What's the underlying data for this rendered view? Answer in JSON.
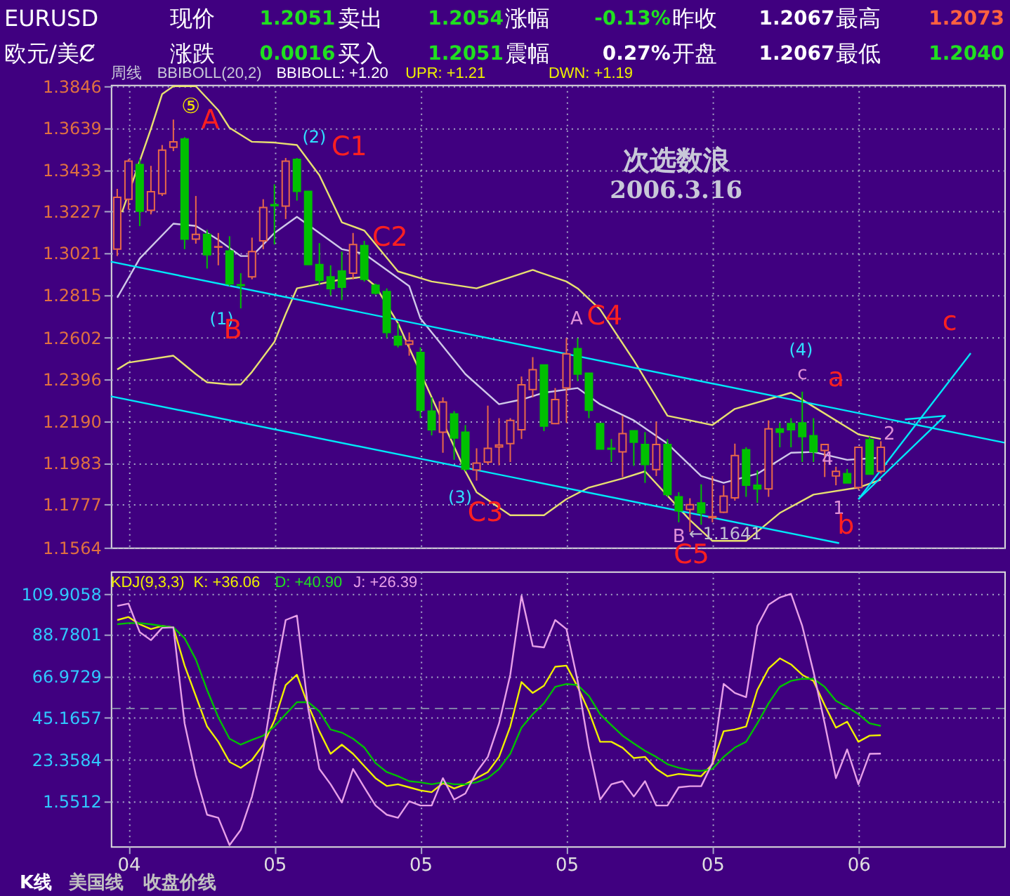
{
  "chart_data": [
    {
      "type": "candlestick",
      "x": [
        "2004-11-22",
        "2004-11-29",
        "2004-12-06",
        "2004-12-13",
        "2004-12-20",
        "2004-12-27",
        "2005-01-03",
        "2005-01-10",
        "2005-01-17",
        "2005-01-24",
        "2005-01-31",
        "2005-02-07",
        "2005-02-14",
        "2005-02-21",
        "2005-02-28",
        "2005-03-07",
        "2005-03-14",
        "2005-03-21",
        "2005-03-28",
        "2005-04-04",
        "2005-04-11",
        "2005-04-18",
        "2005-04-25",
        "2005-05-02",
        "2005-05-09",
        "2005-05-16",
        "2005-05-23",
        "2005-05-30",
        "2005-06-06",
        "2005-06-13",
        "2005-06-20",
        "2005-06-27",
        "2005-07-04",
        "2005-07-11",
        "2005-07-18",
        "2005-07-25",
        "2005-08-01",
        "2005-08-08",
        "2005-08-15",
        "2005-08-22",
        "2005-08-29",
        "2005-09-05",
        "2005-09-12",
        "2005-09-19",
        "2005-09-26",
        "2005-10-03",
        "2005-10-10",
        "2005-10-17",
        "2005-10-24",
        "2005-10-31",
        "2005-11-07",
        "2005-11-14",
        "2005-11-21",
        "2005-11-28",
        "2005-12-05",
        "2005-12-12",
        "2005-12-19",
        "2005-12-26",
        "2006-01-02",
        "2006-01-09",
        "2006-01-16",
        "2006-01-23",
        "2006-01-30",
        "2006-02-06",
        "2006-02-13",
        "2006-02-20",
        "2006-02-27",
        "2006-03-06",
        "2006-03-13"
      ],
      "ohlc": [
        [
          1.304,
          1.3338,
          1.3006,
          1.3296
        ],
        [
          1.3287,
          1.3486,
          1.3235,
          1.3475
        ],
        [
          1.3459,
          1.3486,
          1.3154,
          1.3228
        ],
        [
          1.3232,
          1.3452,
          1.3212,
          1.3324
        ],
        [
          1.3315,
          1.3555,
          1.3303,
          1.353
        ],
        [
          1.3544,
          1.3681,
          1.3525,
          1.3571
        ],
        [
          1.3585,
          1.3594,
          1.304,
          1.309
        ],
        [
          1.309,
          1.3303,
          1.3067,
          1.3113
        ],
        [
          1.3113,
          1.3136,
          1.2944,
          1.3012
        ],
        [
          1.305,
          1.312,
          1.296,
          1.3052
        ],
        [
          1.3031,
          1.3104,
          1.2857,
          1.2868
        ],
        [
          1.2864,
          1.2921,
          1.2747,
          1.286
        ],
        [
          1.2903,
          1.3097,
          1.2891,
          1.3028
        ],
        [
          1.3081,
          1.3287,
          1.304,
          1.3246
        ],
        [
          1.326,
          1.3361,
          1.3063,
          1.3255
        ],
        [
          1.3253,
          1.3491,
          1.3189,
          1.3475
        ],
        [
          1.3484,
          1.3491,
          1.328,
          1.3326
        ],
        [
          1.3326,
          1.3326,
          1.2964,
          1.2964
        ],
        [
          1.2964,
          1.307,
          1.2861,
          1.2886
        ],
        [
          1.2903,
          1.296,
          1.2811,
          1.2845
        ],
        [
          1.2932,
          1.3028,
          1.2788,
          1.2852
        ],
        [
          1.2921,
          1.312,
          1.2891,
          1.3063
        ],
        [
          1.3058,
          1.3081,
          1.288,
          1.2891
        ],
        [
          1.2861,
          1.287,
          1.2815,
          1.2822
        ],
        [
          1.283,
          1.2846,
          1.26,
          1.2628
        ],
        [
          1.2609,
          1.2674,
          1.2554,
          1.2566
        ],
        [
          1.257,
          1.2628,
          1.2513,
          1.2586
        ],
        [
          1.2529,
          1.2554,
          1.2204,
          1.2243
        ],
        [
          1.2239,
          1.2307,
          1.2119,
          1.2147
        ],
        [
          1.2135,
          1.2307,
          1.2033,
          1.2284
        ],
        [
          1.2225,
          1.2239,
          1.1998,
          1.2106
        ],
        [
          1.2135,
          1.217,
          1.1941,
          1.1952
        ],
        [
          1.1948,
          1.2055,
          1.1895,
          1.1982
        ],
        [
          1.1987,
          1.2266,
          1.1975,
          1.2055
        ],
        [
          1.2062,
          1.2204,
          1.1971,
          1.2071
        ],
        [
          1.2078,
          1.2204,
          1.1987,
          1.2193
        ],
        [
          1.2147,
          1.241,
          1.2101,
          1.2369
        ],
        [
          1.2346,
          1.2506,
          1.2307,
          1.2444
        ],
        [
          1.2467,
          1.2467,
          1.214,
          1.2165
        ],
        [
          1.2177,
          1.2353,
          1.2177,
          1.2296
        ],
        [
          1.2353,
          1.26,
          1.2181,
          1.2522
        ],
        [
          1.2548,
          1.26,
          1.2387,
          1.2422
        ],
        [
          1.2426,
          1.2426,
          1.2204,
          1.2243
        ],
        [
          1.2177,
          1.2177,
          1.2051,
          1.2051
        ],
        [
          1.2055,
          1.2101,
          1.1987,
          1.2051
        ],
        [
          1.2037,
          1.2216,
          1.1913,
          1.2128
        ],
        [
          1.2142,
          1.2142,
          1.1968,
          1.2085
        ],
        [
          1.2074,
          1.2135,
          1.1884,
          1.1975
        ],
        [
          1.195,
          1.2188,
          1.1918,
          1.2074
        ],
        [
          1.2074,
          1.2101,
          1.1815,
          1.1826
        ],
        [
          1.1815,
          1.1838,
          1.1689,
          1.1746
        ],
        [
          1.1753,
          1.1808,
          1.1641,
          1.1776
        ],
        [
          1.1785,
          1.1877,
          1.1677,
          1.1735
        ],
        [
          1.1712,
          1.1918,
          1.1689,
          1.1717
        ],
        [
          1.1739,
          1.1872,
          1.1735,
          1.1819
        ],
        [
          1.181,
          1.2078,
          1.1796,
          1.2019
        ],
        [
          1.2048,
          1.206,
          1.1815,
          1.1872
        ],
        [
          1.1872,
          1.1946,
          1.1785,
          1.1854
        ],
        [
          1.1854,
          1.2193,
          1.1815,
          1.2151
        ],
        [
          1.2151,
          1.2181,
          1.206,
          1.2135
        ],
        [
          1.2177,
          1.2204,
          1.206,
          1.2147
        ],
        [
          1.2181,
          1.2335,
          1.1987,
          1.2113
        ],
        [
          1.2117,
          1.2204,
          1.1987,
          1.2037
        ],
        [
          1.2044,
          1.2074,
          1.1913,
          1.2074
        ],
        [
          1.1918,
          1.1964,
          1.1872,
          1.1941
        ],
        [
          1.193,
          1.1953,
          1.1884,
          1.1884
        ],
        [
          1.1861,
          1.206,
          1.185,
          1.206
        ],
        [
          1.2097,
          1.2113,
          1.1927,
          1.1927
        ],
        [
          1.1941,
          1.209,
          1.193,
          1.206
        ]
      ],
      "series": [
        {
          "type": "line",
          "color": "#e8e070",
          "x": [
            "2004-11-25",
            "2004-12-13",
            "2004-12-20",
            "2004-12-27",
            "2005-01-10",
            "2005-01-24",
            "2005-01-31",
            "2005-02-14",
            "2005-02-28",
            "2005-03-14",
            "2005-03-28",
            "2005-04-11",
            "2005-04-25",
            "2005-05-16",
            "2005-06-06",
            "2005-07-04",
            "2005-08-08",
            "2005-08-29",
            "2005-09-05",
            "2005-09-19",
            "2005-10-10",
            "2005-10-31",
            "2005-11-14",
            "2005-11-28",
            "2005-12-12",
            "2006-01-16",
            "2006-01-30",
            "2006-02-27",
            "2006-03-13"
          ],
          "values": [
            1.3223,
            1.3635,
            1.3807,
            1.3846,
            1.3846,
            1.3727,
            1.364,
            1.3571,
            1.3567,
            1.3555,
            1.3406,
            1.3173,
            1.3132,
            1.293,
            1.288,
            1.2846,
            1.2937,
            1.288,
            1.2846,
            1.2742,
            1.249,
            1.2216,
            1.2193,
            1.217,
            1.225,
            1.233,
            1.2261,
            1.2124,
            1.2101
          ]
        },
        {
          "type": "line",
          "color": "#d0c8e8",
          "x": [
            "2004-11-22",
            "2004-12-06",
            "2004-12-27",
            "2005-01-10",
            "2005-01-24",
            "2005-02-07",
            "2005-02-14",
            "2005-02-28",
            "2005-03-14",
            "2005-03-28",
            "2005-04-11",
            "2005-04-25",
            "2005-05-23",
            "2005-05-30",
            "2005-06-27",
            "2005-07-18",
            "2005-08-01",
            "2005-08-15",
            "2005-09-05",
            "2005-09-19",
            "2005-10-10",
            "2005-10-31",
            "2005-11-21",
            "2005-12-05",
            "2005-12-26",
            "2006-01-16",
            "2006-01-30",
            "2006-02-20",
            "2006-03-10"
          ],
          "values": [
            1.28,
            1.2994,
            1.3166,
            1.3155,
            1.3086,
            1.3006,
            1.3006,
            1.312,
            1.32,
            1.312,
            1.304,
            1.3017,
            1.2857,
            1.2697,
            1.2422,
            1.2273,
            1.2296,
            1.233,
            1.2353,
            1.2273,
            1.2193,
            1.2078,
            1.1918,
            1.1884,
            1.1929,
            1.2033,
            1.2037,
            1.1998,
            1.2007
          ]
        },
        {
          "type": "line",
          "color": "#e8e070",
          "x": [
            "2004-11-22",
            "2004-11-29",
            "2004-12-27",
            "2005-01-10",
            "2005-01-17",
            "2005-01-31",
            "2005-02-07",
            "2005-02-14",
            "2005-02-28",
            "2005-03-07",
            "2005-03-14",
            "2005-03-28",
            "2005-04-11",
            "2005-04-25",
            "2005-05-02",
            "2005-05-16",
            "2005-06-27",
            "2005-07-04",
            "2005-07-25",
            "2005-08-15",
            "2005-08-29",
            "2005-09-12",
            "2005-10-03",
            "2005-10-17",
            "2005-11-14",
            "2005-11-28",
            "2005-12-19",
            "2006-01-09",
            "2006-01-30",
            "2006-02-27",
            "2006-03-13"
          ],
          "values": [
            1.2445,
            1.2479,
            1.2513,
            1.2422,
            1.2381,
            1.2371,
            1.2371,
            1.2433,
            1.2582,
            1.2719,
            1.2846,
            1.2868,
            1.2891,
            1.2903,
            1.2857,
            1.2674,
            1.1941,
            1.1838,
            1.1724,
            1.1724,
            1.1804,
            1.1861,
            1.1906,
            1.1941,
            1.17,
            1.1597,
            1.1597,
            1.1735,
            1.1826,
            1.1861,
            1.19
          ]
        },
        {
          "type": "line",
          "color": "#00e8f8",
          "x": [
            "2004-11-18",
            "2006-05-29"
          ],
          "values": [
            1.2978,
            1.2083
          ]
        },
        {
          "type": "line",
          "color": "#00e8f8",
          "x": [
            "2004-11-18",
            "2006-02-15"
          ],
          "values": [
            1.2312,
            1.1586
          ]
        },
        {
          "type": "line",
          "color": "#00e8f8",
          "x": [
            "2006-02-27",
            "2006-05-08"
          ],
          "values": [
            1.1803,
            1.2525
          ]
        },
        {
          "type": "line",
          "color": "#00e8f8",
          "x": [
            "2006-02-27",
            "2006-04-22",
            "2006-03-28"
          ],
          "values": [
            1.1803,
            1.2216,
            1.2198
          ]
        }
      ],
      "xlim": [
        "2004-11-18",
        "2006-05-29"
      ],
      "xticks": [
        {
          "value": "2004-11-29",
          "label": null
        },
        {
          "value": "2005-02-28",
          "label": null
        },
        {
          "value": "2005-05-30",
          "label": null
        },
        {
          "value": "2005-08-29",
          "label": null
        },
        {
          "value": "2005-11-28",
          "label": null
        },
        {
          "value": "2006-02-27",
          "label": null
        }
      ],
      "ylim": [
        1.1564,
        1.3853
      ],
      "yticks": [
        1.1564,
        1.1777,
        1.1983,
        {
          "value": 1.219,
          "label": "1.2190"
        },
        1.2396,
        1.2602,
        1.2815,
        1.3021,
        1.3227,
        1.3433,
        1.3639,
        1.3846
      ],
      "tick_labels": "y",
      "grid": true,
      "annotations": [
        "EURUSD",
        "现价",
        "1.2051",
        "卖出",
        "1.2054",
        "涨幅",
        "-0.13%",
        "昨收",
        "1.2067",
        "最高",
        "1.2073",
        "欧元/美Ȼ",
        "涨跌",
        "0.0016",
        "买入",
        "1.2051",
        "震幅",
        "0.27%",
        "开盘",
        "1.2067",
        "最低",
        "1.2040",
        "周线",
        "BBIBOLL(20,2)",
        "BBIBOLL: +1.20",
        "UPR: +1.21",
        "DWN: +1.19",
        "次选数浪",
        "2006.3.16",
        "⑤",
        "A",
        "(2)",
        "C1",
        "(1)",
        "B",
        "C2",
        "A",
        "C4",
        "(3)",
        "C3",
        "B",
        "←1.1641",
        "C5",
        "(4)",
        "c",
        "a",
        "2",
        "4",
        "1",
        "b",
        "c"
      ]
    },
    {
      "type": "line",
      "x": [
        "2004-11-22",
        "2004-11-29",
        "2004-12-06",
        "2004-12-13",
        "2004-12-20",
        "2004-12-27",
        "2005-01-03",
        "2005-01-10",
        "2005-01-17",
        "2005-01-24",
        "2005-01-31",
        "2005-02-07",
        "2005-02-14",
        "2005-02-21",
        "2005-02-28",
        "2005-03-07",
        "2005-03-14",
        "2005-03-21",
        "2005-03-28",
        "2005-04-04",
        "2005-04-11",
        "2005-04-18",
        "2005-04-25",
        "2005-05-02",
        "2005-05-09",
        "2005-05-16",
        "2005-05-23",
        "2005-05-30",
        "2005-06-06",
        "2005-06-13",
        "2005-06-20",
        "2005-06-27",
        "2005-07-04",
        "2005-07-11",
        "2005-07-18",
        "2005-07-25",
        "2005-08-01",
        "2005-08-08",
        "2005-08-15",
        "2005-08-22",
        "2005-08-29",
        "2005-09-05",
        "2005-09-12",
        "2005-09-19",
        "2005-09-26",
        "2005-10-03",
        "2005-10-10",
        "2005-10-17",
        "2005-10-24",
        "2005-10-31",
        "2005-11-07",
        "2005-11-14",
        "2005-11-21",
        "2005-11-28",
        "2005-12-05",
        "2005-12-12",
        "2005-12-19",
        "2005-12-26",
        "2006-01-02",
        "2006-01-09",
        "2006-01-16",
        "2006-01-23",
        "2006-01-30",
        "2006-02-06",
        "2006-02-13",
        "2006-02-20",
        "2006-02-27",
        "2006-03-06",
        "2006-03-13"
      ],
      "series": [
        {
          "color": "#f0f000",
          "values": [
            96.2,
            97.8,
            94.0,
            91.5,
            93.1,
            92.4,
            72.4,
            56.5,
            40.6,
            32.6,
            22.1,
            19.0,
            23.1,
            31.1,
            43.8,
            62.2,
            67.6,
            51.7,
            38.1,
            26.3,
            31.1,
            26.3,
            19.9,
            13.6,
            9.5,
            10.4,
            8.8,
            7.2,
            6.3,
            11.0,
            8.2,
            10.4,
            13.6,
            16.8,
            24.7,
            40.6,
            63.8,
            58.1,
            61.9,
            71.8,
            72.4,
            61.3,
            48.5,
            32.6,
            32.6,
            29.5,
            24.1,
            24.7,
            18.4,
            14.6,
            15.8,
            15.2,
            14.6,
            20.9,
            38.1,
            39.0,
            40.6,
            59.7,
            70.8,
            76.2,
            73.0,
            67.6,
            64.4,
            51.7,
            40.0,
            43.1,
            32.6,
            35.8,
            36.06
          ]
        },
        {
          "color": "#00c000",
          "values": [
            94.0,
            94.6,
            94.6,
            94.0,
            93.1,
            92.4,
            86.7,
            75.6,
            59.7,
            45.4,
            34.2,
            31.1,
            33.6,
            35.8,
            40.6,
            47.0,
            53.3,
            53.3,
            48.5,
            39.0,
            37.4,
            34.2,
            29.6,
            21.5,
            16.8,
            14.6,
            12.0,
            11.4,
            10.4,
            11.4,
            10.4,
            10.4,
            11.4,
            13.6,
            18.4,
            26.3,
            40.0,
            47.0,
            52.7,
            61.3,
            62.8,
            62.2,
            56.5,
            47.0,
            41.3,
            35.8,
            31.7,
            27.9,
            24.7,
            20.9,
            19.0,
            17.7,
            17.4,
            18.4,
            24.7,
            29.6,
            32.6,
            42.2,
            52.7,
            61.3,
            64.4,
            65.5,
            65.5,
            61.3,
            54.0,
            50.8,
            47.0,
            42.2,
            40.9
          ]
        },
        {
          "color": "#e8a0e8",
          "values": [
            103.6,
            104.8,
            89.9,
            85.7,
            92.1,
            92.4,
            42.2,
            15.2,
            -5.5,
            -7.1,
            -21.4,
            -13.4,
            4.0,
            27.9,
            64.4,
            96.2,
            98.5,
            50.1,
            18.4,
            10.4,
            0.9,
            18.4,
            8.8,
            -0.7,
            -5.5,
            -7.1,
            1.5,
            -0.7,
            -0.7,
            13.6,
            2.4,
            5.6,
            16.8,
            24.7,
            42.2,
            67.6,
            108.9,
            82.6,
            81.9,
            96.2,
            91.5,
            64.4,
            29.5,
            2.4,
            10.4,
            12.0,
            4.0,
            12.0,
            -0.7,
            -0.7,
            8.8,
            9.4,
            9.4,
            21.5,
            62.8,
            58.1,
            55.9,
            93.1,
            104.2,
            108.0,
            109.9,
            93.1,
            69.1,
            42.2,
            13.6,
            28.6,
            10.4,
            26.3,
            26.39
          ]
        }
      ],
      "xlim": [
        "2004-11-18",
        "2006-05-29"
      ],
      "xticks": [
        {
          "value": "2004-11-29",
          "label": "04"
        },
        {
          "value": "2005-02-28",
          "label": "05"
        },
        {
          "value": "2005-05-30",
          "label": "05"
        },
        {
          "value": "2005-08-29",
          "label": "05"
        },
        {
          "value": "2005-11-28",
          "label": "05"
        },
        {
          "value": "2006-02-27",
          "label": "06"
        }
      ],
      "ylim": [
        -22,
        121.6
      ],
      "yticks": [
        1.5512,
        23.3584,
        45.1657,
        66.9729,
        88.7801,
        109.9058
      ],
      "grid": true,
      "ref_lines": [
        {
          "axis": "y",
          "value": 50,
          "color": "#8080a8",
          "line_style": "dashed"
        }
      ],
      "annotations": [
        "KDJ(9,3,3)",
        "K: +36.06",
        "D: +40.90",
        "J: +26.39",
        "K线",
        "美国线",
        "收盘价线"
      ]
    }
  ]
}
